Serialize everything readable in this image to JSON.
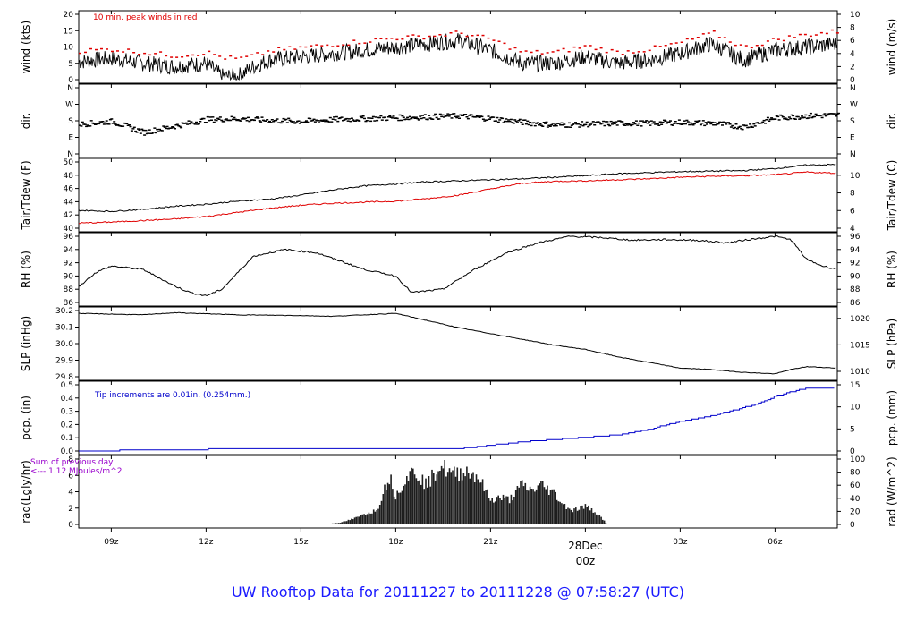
{
  "title": "UW Rooftop Data for 20111227  to  20111228 @ 07:58:27  (UTC)",
  "colors": {
    "title": "#1a1aff",
    "primary": "#000000",
    "secondary": "#e00000",
    "precip": "#0000cc",
    "radiation_note": "#9900cc",
    "radiation_fill": "#1e1e1e"
  },
  "time_axis": {
    "tick_labels": [
      "09z",
      "12z",
      "15z",
      "18z",
      "21z",
      "00z",
      "03z",
      "06z"
    ],
    "tick_hours": [
      9,
      12,
      15,
      18,
      21,
      24,
      27,
      30
    ],
    "range_hours": [
      7.97,
      31.97
    ],
    "date_marker": {
      "date": "28Dec",
      "time": "00z",
      "hour": 24
    }
  },
  "chart_data": [
    {
      "type": "line",
      "id": "wind",
      "ylabel_left": "wind (kts)",
      "ylabel_right": "wind (m/s)",
      "ylim": [
        0,
        20
      ],
      "left_ticks": [
        "0",
        "5",
        "10",
        "15",
        "20"
      ],
      "right_ticks": [
        "0",
        "2",
        "4",
        "6",
        "8",
        "10"
      ],
      "annotation": "10 min. peak winds in red",
      "x_hours": [
        8,
        9,
        10,
        11,
        12,
        12.5,
        13,
        13.5,
        14,
        15,
        16,
        17,
        18,
        19,
        20,
        21,
        22,
        23,
        24,
        25,
        26,
        27,
        28,
        29,
        30,
        31,
        32
      ],
      "series": [
        {
          "values": [
            5.5,
            6.5,
            5,
            4,
            5,
            1,
            1,
            4,
            6,
            7,
            8,
            9,
            10,
            11,
            12,
            9,
            5,
            5,
            7,
            5,
            6,
            8,
            11,
            6,
            9,
            10,
            11
          ]
        },
        {
          "values": [
            9,
            9.5,
            8.5,
            7.5,
            8.5,
            7,
            6.5,
            7.5,
            9,
            10,
            11,
            12,
            13,
            13.5,
            14.5,
            12.5,
            8.5,
            8.5,
            10.5,
            8.5,
            9.5,
            11.5,
            14.5,
            10,
            12.5,
            14,
            15
          ]
        }
      ]
    },
    {
      "type": "scatter",
      "id": "dir",
      "ylabel_left": "dir.",
      "ylabel_right": "dir.",
      "ylim": [
        0,
        360
      ],
      "left_ticks": [
        "N",
        "E",
        "S",
        "W",
        "N"
      ],
      "right_ticks": [
        "N",
        "E",
        "S",
        "W",
        "N"
      ],
      "x_hours": [
        8,
        9,
        10,
        11,
        12,
        13,
        14,
        15,
        16,
        17,
        18,
        19,
        20,
        21,
        22,
        23,
        24,
        25,
        26,
        27,
        28,
        29,
        30,
        31,
        32
      ],
      "values": [
        165,
        180,
        120,
        155,
        190,
        195,
        185,
        180,
        190,
        195,
        200,
        205,
        210,
        195,
        175,
        160,
        165,
        170,
        170,
        175,
        170,
        150,
        200,
        210,
        215
      ]
    },
    {
      "type": "line",
      "id": "temp",
      "ylabel_left": "Tair/Tdew (F)",
      "ylabel_right": "Tair/Tdew (C)",
      "ylim": [
        38.5,
        51.5
      ],
      "left_ticks": [
        "40",
        "42",
        "44",
        "46",
        "48",
        "50"
      ],
      "right_ticks": [
        "4",
        "6",
        "8",
        "10"
      ],
      "x_hours": [
        8,
        9,
        10,
        11,
        12,
        13,
        14,
        15,
        16,
        17,
        18,
        19,
        20,
        21,
        22,
        23,
        24,
        25,
        26,
        27,
        28,
        29,
        30,
        31,
        32
      ],
      "series": [
        {
          "name": "Tair",
          "values": [
            42,
            41.8,
            42.2,
            42.8,
            43.2,
            43.8,
            44.2,
            45,
            46,
            46.8,
            47.2,
            47.6,
            47.8,
            48,
            48.2,
            48.5,
            48.8,
            49.2,
            49.4,
            49.6,
            49.7,
            49.8,
            50.2,
            50.9,
            51
          ]
        },
        {
          "name": "Tdew",
          "values": [
            39.5,
            39.7,
            40,
            40.3,
            40.8,
            41.6,
            42.4,
            43,
            43.4,
            43.6,
            43.8,
            44.3,
            45,
            46.2,
            47.3,
            47.7,
            47.8,
            48,
            48.2,
            48.5,
            48.7,
            48.8,
            49,
            49.5,
            49.3
          ]
        }
      ]
    },
    {
      "type": "line",
      "id": "rh",
      "ylabel_left": "RH (%)",
      "ylabel_right": "RH (%)",
      "ylim": [
        86,
        96
      ],
      "left_ticks": [
        "86",
        "88",
        "90",
        "92",
        "94",
        "96"
      ],
      "right_ticks": [
        "86",
        "88",
        "90",
        "92",
        "94",
        "96"
      ],
      "x_hours": [
        8,
        8.5,
        9,
        10,
        11,
        11.5,
        12,
        12.5,
        13.5,
        14.5,
        15.5,
        17,
        18,
        18.5,
        19.5,
        20.5,
        21.5,
        22.5,
        23.5,
        24.5,
        25.5,
        26.5,
        27.5,
        28.5,
        29,
        30,
        30.5,
        31,
        31.5,
        32
      ],
      "values": [
        88.5,
        90.5,
        91.5,
        91,
        88.5,
        87.5,
        87,
        88,
        93,
        94,
        93.5,
        91,
        90,
        87.5,
        88,
        91,
        93.5,
        95,
        96,
        95.8,
        95.4,
        95.5,
        95.4,
        95,
        95.4,
        96,
        95.5,
        92.5,
        91.5,
        91
      ]
    },
    {
      "type": "line",
      "id": "slp",
      "ylabel_left": "SLP (inHg)",
      "ylabel_right": "SLP (hPa)",
      "ylim": [
        29.76,
        30.22
      ],
      "left_ticks": [
        "29.8",
        "29.9",
        "30.0",
        "30.1",
        "30.2"
      ],
      "right_ticks": [
        "1010",
        "1015",
        "1020"
      ],
      "x_hours": [
        8,
        10,
        11,
        13,
        15,
        16,
        17,
        18,
        19,
        20,
        21,
        22,
        23,
        24,
        25,
        26,
        27,
        28,
        29,
        30,
        30.5,
        31,
        32
      ],
      "values": [
        30.2,
        30.19,
        30.205,
        30.19,
        30.185,
        30.18,
        30.19,
        30.2,
        30.15,
        30.1,
        30.06,
        30.02,
        29.98,
        29.95,
        29.9,
        29.86,
        29.82,
        29.81,
        29.79,
        29.78,
        29.81,
        29.83,
        29.82
      ]
    },
    {
      "type": "line",
      "id": "pcp",
      "ylabel_left": "pcp. (in)",
      "ylabel_right": "pcp. (mm)",
      "ylim": [
        0,
        0.58
      ],
      "left_ticks": [
        "0.0",
        "0.1",
        "0.2",
        "0.3",
        "0.4",
        "0.5"
      ],
      "right_ticks": [
        "0",
        "5",
        "10",
        "15"
      ],
      "annotation": "Tip increments are 0.01in. (0.254mm.)",
      "x_hours": [
        8,
        10.5,
        13.5,
        16,
        18,
        19,
        20,
        21,
        22,
        23,
        24,
        25,
        26,
        27,
        28,
        29,
        29.5,
        30,
        30.5,
        31,
        32
      ],
      "values": [
        0,
        0.01,
        0.02,
        0.02,
        0.02,
        0.02,
        0.02,
        0.05,
        0.08,
        0.1,
        0.12,
        0.14,
        0.19,
        0.26,
        0.31,
        0.38,
        0.42,
        0.48,
        0.52,
        0.55,
        0.55
      ]
    },
    {
      "type": "area",
      "id": "rad",
      "ylabel_left": "rad(Lgly/hr)",
      "ylabel_right": "rad (W/m^2)",
      "ylim": [
        0,
        8.3
      ],
      "left_ticks": [
        "0",
        "2",
        "4",
        "6",
        "8"
      ],
      "right_ticks": [
        "0",
        "20",
        "40",
        "60",
        "80",
        "100"
      ],
      "annotation_lines": [
        "Sum of previous day",
        "<--- 1.12 MJoules/m^2"
      ],
      "x_hours": [
        15.7,
        16.3,
        16.8,
        17,
        17.4,
        17.6,
        17.8,
        18,
        18.3,
        18.6,
        19,
        19.4,
        19.8,
        20.2,
        20.6,
        21,
        21.3,
        21.6,
        21.8,
        22,
        22.3,
        22.6,
        23,
        23.3,
        23.6,
        24,
        24.4,
        24.7
      ],
      "values": [
        0,
        0.3,
        1,
        1.5,
        2,
        4.5,
        6.8,
        4,
        6.5,
        7.6,
        5.5,
        8.5,
        7,
        7.6,
        6.8,
        3.5,
        3.8,
        3.5,
        4.5,
        5.6,
        4.8,
        5.6,
        4.5,
        2.8,
        2,
        2.6,
        1.5,
        0
      ]
    }
  ]
}
